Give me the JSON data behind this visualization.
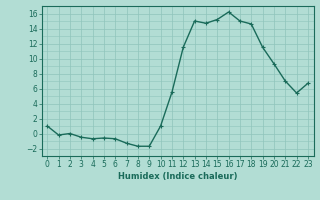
{
  "x": [
    0,
    1,
    2,
    3,
    4,
    5,
    6,
    7,
    8,
    9,
    10,
    11,
    12,
    13,
    14,
    15,
    16,
    17,
    18,
    19,
    20,
    21,
    22,
    23
  ],
  "y": [
    1.0,
    -0.2,
    0.0,
    -0.5,
    -0.7,
    -0.6,
    -0.7,
    -1.3,
    -1.7,
    -1.7,
    1.0,
    5.5,
    11.5,
    15.0,
    14.7,
    15.2,
    16.2,
    15.0,
    14.6,
    11.5,
    9.3,
    7.0,
    5.4,
    6.7
  ],
  "line_color": "#1a6b5a",
  "bg_color": "#b2ddd4",
  "grid_color": "#8fc4bb",
  "xlabel": "Humidex (Indice chaleur)",
  "ylim": [
    -3,
    17
  ],
  "xlim": [
    -0.5,
    23.5
  ],
  "yticks": [
    -2,
    0,
    2,
    4,
    6,
    8,
    10,
    12,
    14,
    16
  ],
  "xticks": [
    0,
    1,
    2,
    3,
    4,
    5,
    6,
    7,
    8,
    9,
    10,
    11,
    12,
    13,
    14,
    15,
    16,
    17,
    18,
    19,
    20,
    21,
    22,
    23
  ],
  "marker": "+",
  "marker_size": 3.5,
  "line_width": 1.0,
  "tick_fontsize": 5.5,
  "xlabel_fontsize": 6.0
}
